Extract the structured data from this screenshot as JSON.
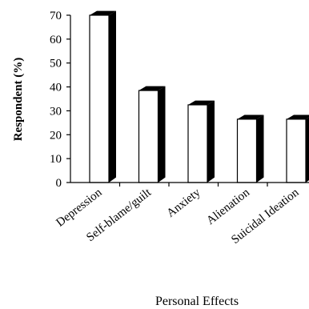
{
  "chart_data": {
    "type": "bar",
    "title": "",
    "xlabel": "Personal Effects",
    "ylabel": "Respondent (%)",
    "ylim": [
      0,
      70
    ],
    "yticks": [
      0,
      10,
      20,
      30,
      40,
      50,
      60,
      70
    ],
    "categories": [
      "Depression",
      "Self-blame/guilt",
      "Anxiety",
      "Alienation",
      "Suicidal Ideation"
    ],
    "values": [
      70,
      38.5,
      32.5,
      26.5,
      26.5
    ],
    "grid": false,
    "legend": "none",
    "colors": {
      "bar_face": "#ffffff",
      "bar_shadow": "#000000",
      "axis": "#000000"
    }
  }
}
